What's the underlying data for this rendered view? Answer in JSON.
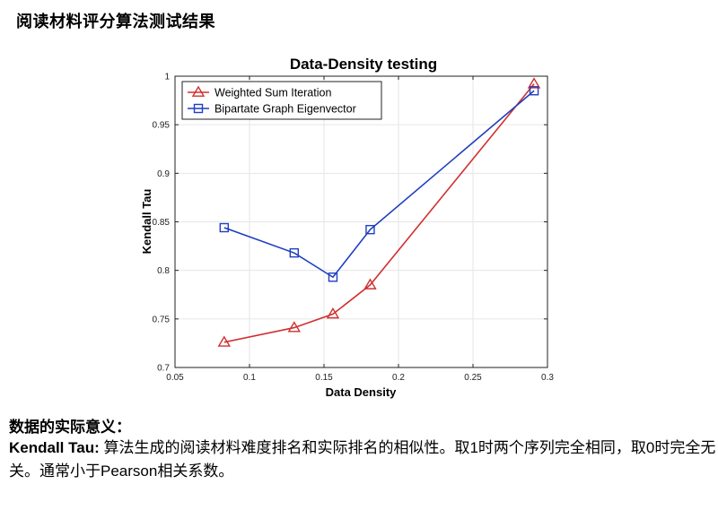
{
  "page": {
    "title": "阅读材料评分算法测试结果"
  },
  "chart_data": {
    "type": "line",
    "title": "Data-Density testing",
    "xlabel": "Data Density",
    "ylabel": "Kendall Tau",
    "xlim": [
      0.05,
      0.3
    ],
    "ylim": [
      0.7,
      1.0
    ],
    "xticks": [
      0.05,
      0.1,
      0.15,
      0.2,
      0.25,
      0.3
    ],
    "xtick_labels": [
      "0.05",
      "0.1",
      "0.15",
      "0.2",
      "0.25",
      "0.3"
    ],
    "yticks": [
      0.7,
      0.75,
      0.8,
      0.85,
      0.9,
      0.95,
      1.0
    ],
    "ytick_labels": [
      "0.7",
      "0.75",
      "0.8",
      "0.85",
      "0.9",
      "0.95",
      "1"
    ],
    "grid": true,
    "legend_position": "top-left",
    "series": [
      {
        "name": "Weighted Sum Iteration",
        "color": "#d03030",
        "marker": "triangle",
        "x": [
          0.083,
          0.13,
          0.156,
          0.181,
          0.291
        ],
        "y": [
          0.726,
          0.741,
          0.755,
          0.785,
          0.992
        ]
      },
      {
        "name": "Bipartate Graph Eigenvector",
        "color": "#1f3fbf",
        "marker": "square",
        "x": [
          0.083,
          0.13,
          0.156,
          0.181,
          0.291
        ],
        "y": [
          0.844,
          0.818,
          0.793,
          0.842,
          0.985
        ]
      }
    ]
  },
  "notes": {
    "heading": "数据的实际意义：",
    "term": "Kendall Tau:",
    "text": " 算法生成的阅读材料难度排名和实际排名的相似性。取1时两个序列完全相同，取0时完全无关。通常小于Pearson相关系数。"
  }
}
